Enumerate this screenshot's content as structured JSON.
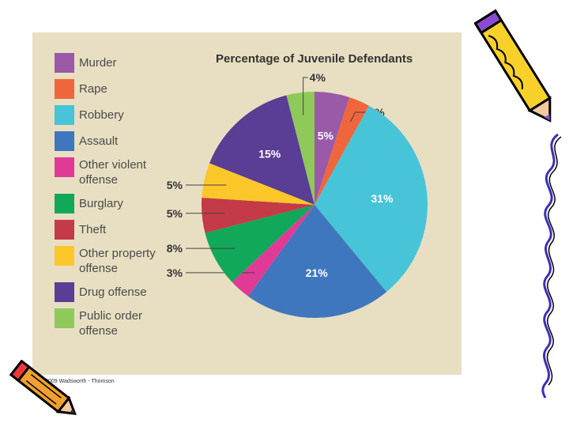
{
  "chart_data": {
    "type": "pie",
    "title": "Percentage of Juvenile Defendants",
    "slices": [
      {
        "name": "Murder",
        "value": 5,
        "label": "5%",
        "color": "#9a5aa8"
      },
      {
        "name": "Rape",
        "value": 3,
        "label": "3%",
        "color": "#f0663c"
      },
      {
        "name": "Robbery",
        "value": 31,
        "label": "31%",
        "color": "#48c4d8"
      },
      {
        "name": "Assault",
        "value": 21,
        "label": "21%",
        "color": "#3f77bf"
      },
      {
        "name": "Other violent offense",
        "value": 3,
        "label": "3%",
        "color": "#e03a96"
      },
      {
        "name": "Burglary",
        "value": 8,
        "label": "8%",
        "color": "#11a85a"
      },
      {
        "name": "Theft",
        "value": 5,
        "label": "5%",
        "color": "#c43b47"
      },
      {
        "name": "Other property offense",
        "value": 5,
        "label": "5%",
        "color": "#fcc72b"
      },
      {
        "name": "Drug offense",
        "value": 15,
        "label": "15%",
        "color": "#5a3d94"
      },
      {
        "name": "Public order offense",
        "value": 4,
        "label": "4%",
        "color": "#8fc95a"
      }
    ]
  },
  "legend": [
    {
      "lines": [
        "Murder"
      ],
      "color": "#9a5aa8"
    },
    {
      "lines": [
        "Rape"
      ],
      "color": "#f0663c"
    },
    {
      "lines": [
        "Robbery"
      ],
      "color": "#48c4d8"
    },
    {
      "lines": [
        "Assault"
      ],
      "color": "#3f77bf"
    },
    {
      "lines": [
        "Other violent",
        "offense"
      ],
      "color": "#e03a96"
    },
    {
      "lines": [
        "Burglary"
      ],
      "color": "#11a85a"
    },
    {
      "lines": [
        "Theft"
      ],
      "color": "#c43b47"
    },
    {
      "lines": [
        "Other property",
        "offense"
      ],
      "color": "#fcc72b"
    },
    {
      "lines": [
        "Drug offense"
      ],
      "color": "#5a3d94"
    },
    {
      "lines": [
        "Public order",
        "offense"
      ],
      "color": "#8fc95a"
    }
  ],
  "copyright": "© 2009 Wadsworth - Thomson",
  "decorations": {
    "icons": [
      "pencil-icon",
      "pencil-icon",
      "squiggle-border"
    ]
  }
}
